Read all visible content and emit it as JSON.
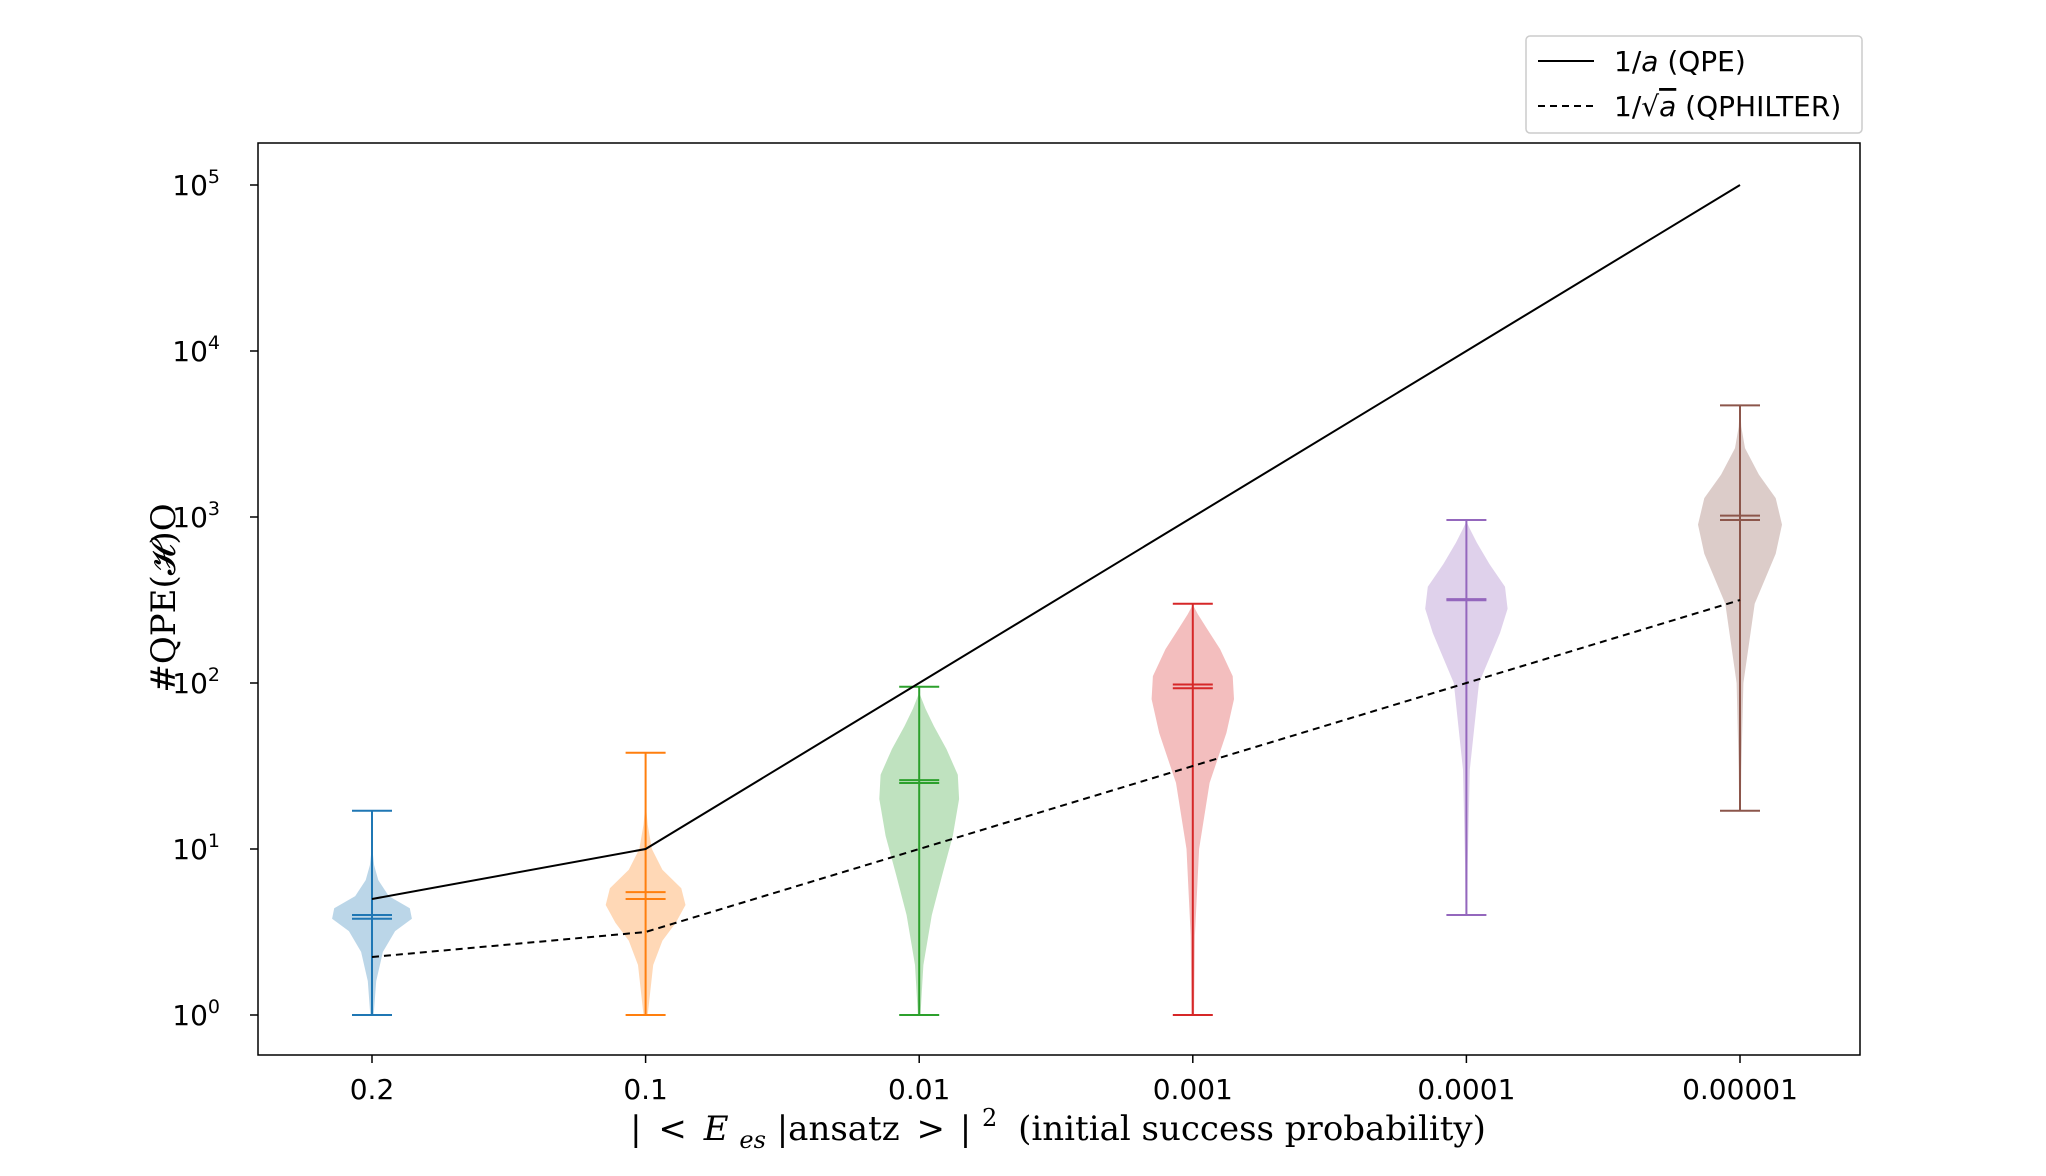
{
  "chart_data": {
    "type": "violin",
    "xlabel": "|<E_es|ansatz>|² (initial success probability)",
    "xlabel_parts": {
      "bar1": "|",
      "lt": "<",
      "E": "E",
      "sub": "es",
      "mid": "|ansatz",
      "gt": ">",
      "bar2": "|",
      "sup": "2",
      "tail": "(initial success probability)"
    },
    "ylabel": "#QPE(𝓗)O",
    "yscale": "log",
    "ylim": [
      0.77,
      140000
    ],
    "grid": false,
    "categories": [
      "0.2",
      "0.1",
      "0.01",
      "0.001",
      "0.0001",
      "0.00001"
    ],
    "y_ticks": [
      {
        "base": "10",
        "exp": "0",
        "value": 1
      },
      {
        "base": "10",
        "exp": "1",
        "value": 10
      },
      {
        "base": "10",
        "exp": "2",
        "value": 100
      },
      {
        "base": "10",
        "exp": "3",
        "value": 1000
      },
      {
        "base": "10",
        "exp": "4",
        "value": 10000
      },
      {
        "base": "10",
        "exp": "5",
        "value": 100000
      }
    ],
    "violins": [
      {
        "category": "0.2",
        "color": "#1f77b4",
        "min": 1,
        "max": 17,
        "mean": 4.0,
        "median": 3.8,
        "profile": [
          [
            1,
            0.04
          ],
          [
            1.6,
            0.1
          ],
          [
            2.4,
            0.26
          ],
          [
            3.2,
            0.55
          ],
          [
            3.8,
            0.95
          ],
          [
            4.4,
            0.9
          ],
          [
            5.2,
            0.4
          ],
          [
            6.5,
            0.15
          ],
          [
            8,
            0.05
          ],
          [
            10,
            0.01
          ]
        ]
      },
      {
        "category": "0.1",
        "color": "#ff7f0e",
        "min": 1,
        "max": 38,
        "mean": 5.5,
        "median": 5.0,
        "profile": [
          [
            1,
            0.05
          ],
          [
            2,
            0.18
          ],
          [
            2.8,
            0.4
          ],
          [
            3.6,
            0.72
          ],
          [
            4.6,
            0.95
          ],
          [
            5.8,
            0.85
          ],
          [
            7.5,
            0.4
          ],
          [
            10,
            0.15
          ],
          [
            14,
            0.05
          ],
          [
            18,
            0.01
          ]
        ]
      },
      {
        "category": "0.01",
        "color": "#2ca02c",
        "min": 1,
        "max": 95,
        "mean": 26,
        "median": 25,
        "profile": [
          [
            1,
            0.03
          ],
          [
            2,
            0.1
          ],
          [
            4,
            0.3
          ],
          [
            7,
            0.55
          ],
          [
            12,
            0.8
          ],
          [
            20,
            0.95
          ],
          [
            28,
            0.92
          ],
          [
            40,
            0.65
          ],
          [
            55,
            0.35
          ],
          [
            70,
            0.15
          ],
          [
            85,
            0.02
          ]
        ]
      },
      {
        "category": "0.001",
        "color": "#d62728",
        "min": 1,
        "max": 300,
        "mean": 98,
        "median": 93,
        "profile": [
          [
            1,
            0.03
          ],
          [
            3,
            0.05
          ],
          [
            10,
            0.15
          ],
          [
            25,
            0.4
          ],
          [
            50,
            0.8
          ],
          [
            80,
            0.98
          ],
          [
            110,
            0.95
          ],
          [
            160,
            0.65
          ],
          [
            210,
            0.35
          ],
          [
            260,
            0.12
          ],
          [
            290,
            0.02
          ]
        ]
      },
      {
        "category": "0.0001",
        "color": "#9467bd",
        "min": 4,
        "max": 960,
        "mean": 320,
        "median": 315,
        "profile": [
          [
            4,
            0.02
          ],
          [
            8,
            0.03
          ],
          [
            30,
            0.08
          ],
          [
            100,
            0.3
          ],
          [
            200,
            0.8
          ],
          [
            280,
            0.98
          ],
          [
            380,
            0.92
          ],
          [
            520,
            0.55
          ],
          [
            700,
            0.25
          ],
          [
            850,
            0.08
          ],
          [
            930,
            0.01
          ]
        ]
      },
      {
        "category": "0.00001",
        "color": "#8c564b",
        "min": 17,
        "max": 4700,
        "mean": 1020,
        "median": 960,
        "profile": [
          [
            17,
            0.02
          ],
          [
            30,
            0.03
          ],
          [
            100,
            0.08
          ],
          [
            300,
            0.35
          ],
          [
            600,
            0.85
          ],
          [
            900,
            1.0
          ],
          [
            1300,
            0.85
          ],
          [
            1800,
            0.45
          ],
          [
            2600,
            0.12
          ],
          [
            3500,
            0.03
          ],
          [
            4300,
            0.01
          ]
        ]
      }
    ],
    "series": [
      {
        "name": "1/a (QPE)",
        "style": "solid",
        "color": "#000000",
        "values": [
          5,
          10,
          100,
          1000,
          10000,
          100000
        ]
      },
      {
        "name": "1/√a (QPHILTER)",
        "style": "dashed",
        "color": "#000000",
        "values": [
          2.236,
          3.162,
          10,
          31.62,
          100,
          316.2
        ]
      }
    ],
    "legend": {
      "placement": "top-right, above plot",
      "entries": [
        {
          "pre": "1/",
          "var": "a",
          "post": " (QPE)"
        },
        {
          "pre": "1/√",
          "var": "a",
          "post": " (QPHILTER)"
        }
      ]
    }
  }
}
